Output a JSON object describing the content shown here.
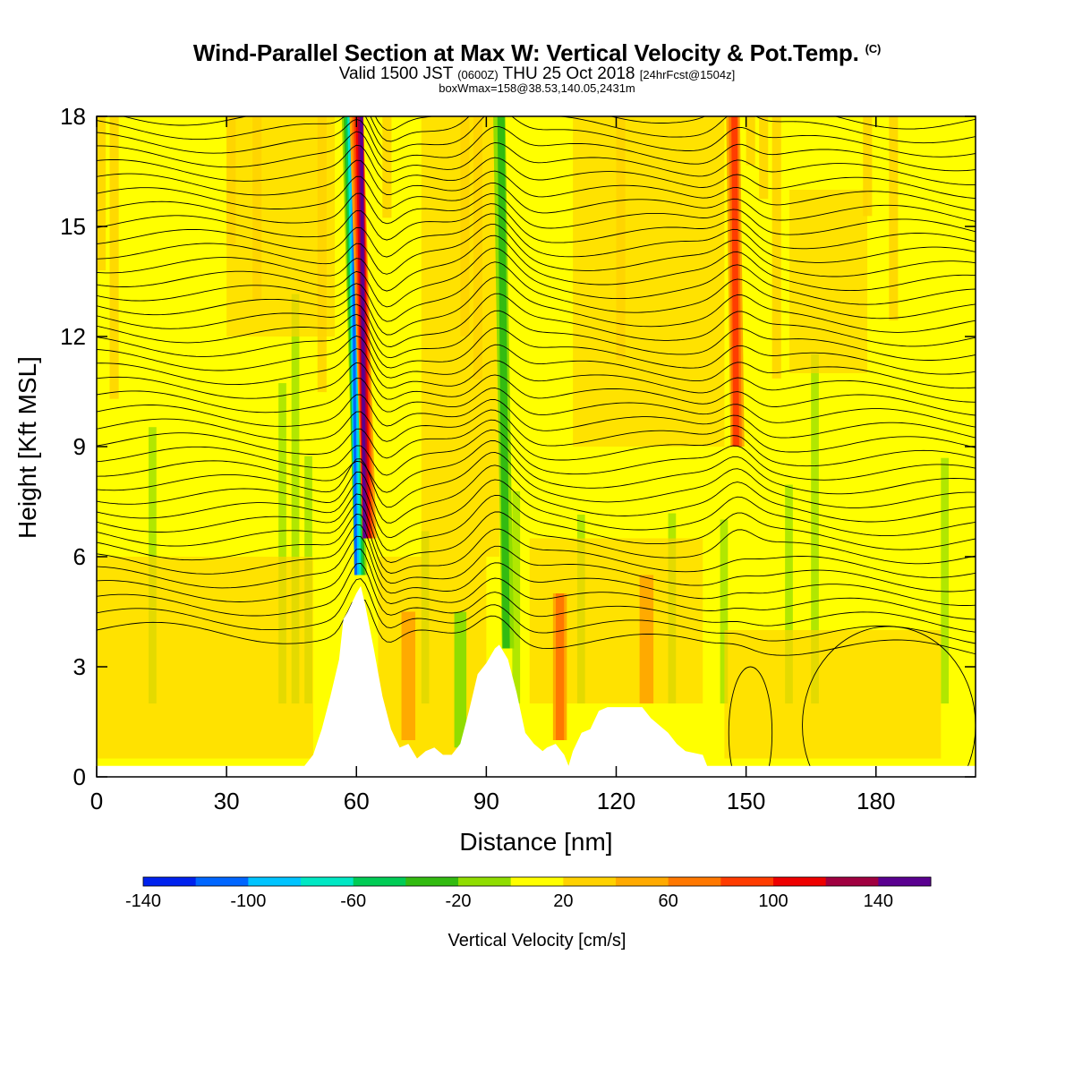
{
  "header": {
    "title": "Wind-Parallel Section at Max W: Vertical Velocity & Pot.Temp.",
    "title_mark": "(C)",
    "valid_prefix": "Valid 1500 JST",
    "valid_utc": "(0600Z)",
    "valid_date": "THU 25 Oct 2018",
    "forecast": "[24hrFcst@1504z]",
    "box_info": "boxWmax=158@38.53,140.05,2431m"
  },
  "chart_data": {
    "type": "heatmap",
    "xlabel": "Distance [nm]",
    "ylabel": "Height [Kft MSL]",
    "xlim": [
      0,
      203
    ],
    "ylim": [
      0,
      18
    ],
    "x_ticks": [
      "0",
      "30",
      "60",
      "90",
      "120",
      "150",
      "180"
    ],
    "y_ticks": [
      "0",
      "3",
      "6",
      "9",
      "12",
      "15",
      "18"
    ],
    "overlay": "potential temperature contours",
    "terrain": [
      [
        0,
        0.3
      ],
      [
        48,
        0.3
      ],
      [
        50,
        0.6
      ],
      [
        52,
        1.3
      ],
      [
        54,
        2.2
      ],
      [
        56,
        3.2
      ],
      [
        57,
        4.3
      ],
      [
        58,
        4.5
      ],
      [
        60,
        5.0
      ],
      [
        61,
        5.2
      ],
      [
        62,
        4.7
      ],
      [
        64,
        3.5
      ],
      [
        66,
        2.2
      ],
      [
        68,
        1.3
      ],
      [
        70,
        0.8
      ],
      [
        72,
        0.9
      ],
      [
        74,
        0.5
      ],
      [
        76,
        0.7
      ],
      [
        78,
        0.8
      ],
      [
        80,
        0.6
      ],
      [
        82,
        0.6
      ],
      [
        84,
        0.9
      ],
      [
        86,
        1.8
      ],
      [
        88,
        2.8
      ],
      [
        90,
        3.1
      ],
      [
        92,
        3.5
      ],
      [
        93,
        3.6
      ],
      [
        95,
        3.2
      ],
      [
        97,
        2.3
      ],
      [
        99,
        1.2
      ],
      [
        101,
        0.9
      ],
      [
        103,
        0.7
      ],
      [
        104,
        0.8
      ],
      [
        106,
        0.9
      ],
      [
        108,
        0.6
      ],
      [
        109,
        0.3
      ],
      [
        110,
        0.7
      ],
      [
        112,
        1.2
      ],
      [
        114,
        1.3
      ],
      [
        116,
        1.8
      ],
      [
        118,
        1.9
      ],
      [
        126,
        1.9
      ],
      [
        128,
        1.6
      ],
      [
        130,
        1.4
      ],
      [
        132,
        1.2
      ],
      [
        134,
        0.9
      ],
      [
        136,
        0.7
      ],
      [
        140,
        0.6
      ],
      [
        141,
        0.3
      ],
      [
        203,
        0.3
      ]
    ],
    "w_features": [
      {
        "x": 61,
        "y_bottom": 5.5,
        "y_top": 18,
        "lean": 3,
        "value": -140
      },
      {
        "x": 63,
        "y_bottom": 6.5,
        "y_top": 18,
        "lean": 3,
        "value": 140
      },
      {
        "x": 95,
        "y_bottom": 3.5,
        "y_top": 18,
        "lean": 2,
        "value": -60
      },
      {
        "x": 148,
        "y_bottom": 9.0,
        "y_top": 18,
        "lean": 1,
        "value": 80
      },
      {
        "x": 107,
        "y_bottom": 1.0,
        "y_top": 5.0,
        "lean": 0,
        "value": 60
      },
      {
        "x": 127,
        "y_bottom": 2.0,
        "y_top": 5.5,
        "lean": 0,
        "value": 40
      },
      {
        "x": 72,
        "y_bottom": 1.0,
        "y_top": 4.5,
        "lean": 0,
        "value": 40
      },
      {
        "x": 84,
        "y_bottom": 0.8,
        "y_top": 4.5,
        "lean": 0,
        "value": -40
      }
    ],
    "colorbar": {
      "label": "Vertical Velocity [cm/s]",
      "tick_labels": [
        "-140",
        "-100",
        "-60",
        "-20",
        "20",
        "60",
        "100",
        "140"
      ],
      "colors": [
        "#0022ee",
        "#0066ff",
        "#00c4ff",
        "#00e8c4",
        "#00cc55",
        "#33bb11",
        "#90dd00",
        "#ffff00",
        "#ffd200",
        "#ffaa00",
        "#ff7800",
        "#ff3c00",
        "#ee0000",
        "#a00040",
        "#5a0090"
      ]
    }
  }
}
